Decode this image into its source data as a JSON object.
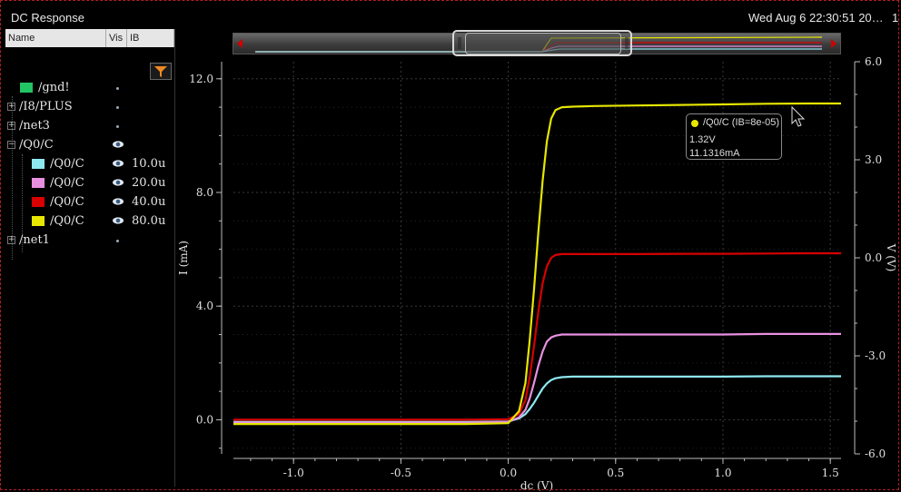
{
  "window": {
    "title": "DC Response",
    "datetime": "Wed Aug 6 22:30:51 20…",
    "datetime_extra": "1"
  },
  "browser": {
    "columns": [
      "Name",
      "Vis",
      "IB"
    ],
    "rows": [
      {
        "label": "/gnd!",
        "expander": "",
        "swatch": "#22c466",
        "vis": "dot",
        "ib": "",
        "indent": 0
      },
      {
        "label": "/I8/PLUS",
        "expander": "+",
        "swatch": "",
        "vis": "dot",
        "ib": "",
        "indent": 0
      },
      {
        "label": "/net3",
        "expander": "+",
        "swatch": "",
        "vis": "dot",
        "ib": "",
        "indent": 0
      },
      {
        "label": "/Q0/C",
        "expander": "−",
        "swatch": "",
        "vis": "eye",
        "ib": "",
        "indent": 0
      },
      {
        "label": "/Q0/C",
        "expander": "",
        "swatch": "#8ee8f0",
        "vis": "eye",
        "ib": "10.0u",
        "indent": 1
      },
      {
        "label": "/Q0/C",
        "expander": "",
        "swatch": "#e890e0",
        "vis": "eye",
        "ib": "20.0u",
        "indent": 1
      },
      {
        "label": "/Q0/C",
        "expander": "",
        "swatch": "#d80000",
        "vis": "eye",
        "ib": "40.0u",
        "indent": 1
      },
      {
        "label": "/Q0/C",
        "expander": "",
        "swatch": "#e6e600",
        "vis": "eye",
        "ib": "80.0u",
        "indent": 1
      },
      {
        "label": "/net1",
        "expander": "+",
        "swatch": "",
        "vis": "dot",
        "ib": "",
        "indent": 0
      }
    ]
  },
  "tooltip": {
    "title": "/Q0/C (IB=8e-05)",
    "line1": "1.32V",
    "line2": "11.1316mA"
  },
  "chart_data": {
    "type": "line",
    "xlabel": "dc (V)",
    "ylabel": "I (mA)",
    "y2label": "V (V)",
    "xlim": [
      -1.28,
      1.55
    ],
    "ylim": [
      -1.2,
      12.6
    ],
    "y2lim": [
      -6.0,
      6.0
    ],
    "xticks": [
      -1.0,
      -0.5,
      0.0,
      0.5,
      1.0,
      1.5
    ],
    "xtick_labels": [
      "-1.0",
      "-0.5",
      "0.0",
      "0.5",
      "1.0",
      "1.5"
    ],
    "yticks": [
      0.0,
      4.0,
      8.0,
      12.0
    ],
    "ytick_labels": [
      "0.0",
      "4.0",
      "8.0",
      "12.0"
    ],
    "y2ticks": [
      -6.0,
      -3.0,
      0.0,
      3.0,
      6.0
    ],
    "y2tick_labels": [
      "-6.0",
      "-3.0",
      "0.0",
      "3.0",
      "6.0"
    ],
    "grid": true,
    "background": "#000000",
    "x": [
      -1.28,
      -0.5,
      -0.2,
      0.0,
      0.05,
      0.08,
      0.1,
      0.12,
      0.14,
      0.16,
      0.18,
      0.2,
      0.22,
      0.25,
      0.3,
      0.4,
      0.6,
      0.8,
      1.0,
      1.2,
      1.4,
      1.55
    ],
    "series": [
      {
        "color": "#8ee8f0",
        "values": [
          -0.08,
          -0.08,
          -0.08,
          -0.06,
          0.05,
          0.2,
          0.38,
          0.6,
          0.85,
          1.1,
          1.28,
          1.4,
          1.46,
          1.5,
          1.52,
          1.52,
          1.52,
          1.52,
          1.52,
          1.53,
          1.53,
          1.53
        ]
      },
      {
        "color": "#e890e0",
        "values": [
          -0.1,
          -0.1,
          -0.1,
          -0.07,
          0.08,
          0.35,
          0.75,
          1.3,
          1.9,
          2.4,
          2.75,
          2.9,
          2.96,
          3.0,
          3.0,
          3.0,
          3.0,
          3.0,
          3.0,
          3.02,
          3.02,
          3.02
        ]
      },
      {
        "color": "#d80000",
        "values": [
          0.0,
          0.0,
          0.0,
          0.02,
          0.2,
          0.7,
          1.5,
          2.6,
          3.8,
          4.8,
          5.4,
          5.7,
          5.8,
          5.83,
          5.83,
          5.83,
          5.83,
          5.84,
          5.84,
          5.85,
          5.86,
          5.86
        ]
      },
      {
        "color": "#e6e600",
        "values": [
          -0.15,
          -0.15,
          -0.15,
          -0.12,
          0.3,
          1.3,
          2.8,
          4.6,
          6.6,
          8.4,
          9.8,
          10.6,
          10.9,
          11.0,
          11.02,
          11.04,
          11.06,
          11.08,
          11.1,
          11.12,
          11.13,
          11.13
        ]
      }
    ]
  }
}
